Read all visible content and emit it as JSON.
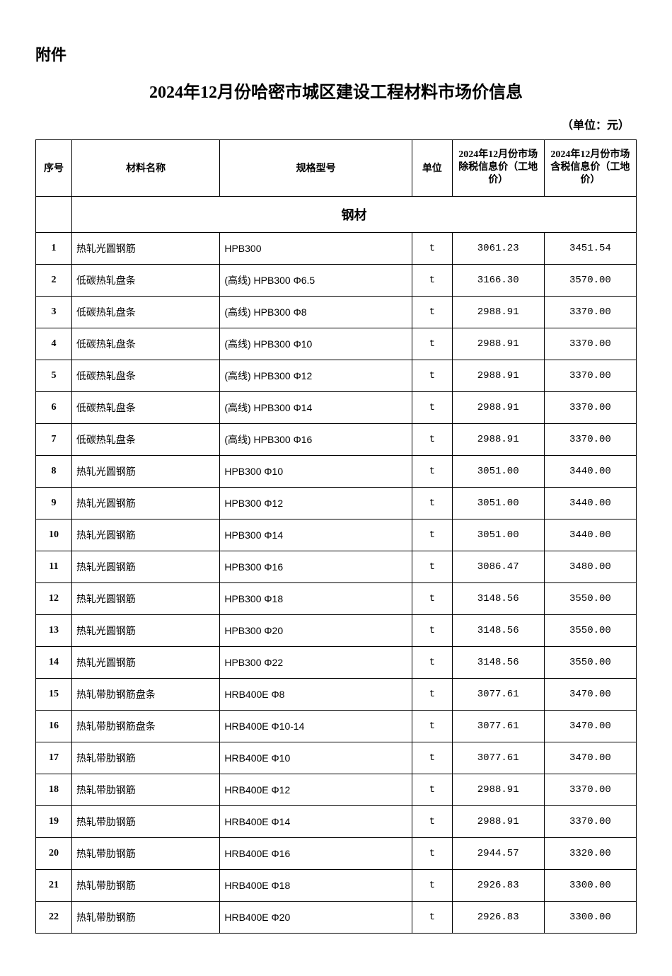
{
  "attachment_label": "附件",
  "title": "2024年12月份哈密市城区建设工程材料市场价信息",
  "unit_label": "（单位：元）",
  "headers": {
    "seq": "序号",
    "name": "材料名称",
    "spec": "规格型号",
    "unit": "单位",
    "price_excl": "2024年12月份市场除税信息价（工地价）",
    "price_incl": "2024年12月份市场含税信息价（工地价）"
  },
  "section_header": "钢材",
  "rows": [
    {
      "seq": "1",
      "name": "热轧光圆钢筋",
      "spec": "HPB300",
      "unit": "t",
      "price_excl": "3061.23",
      "price_incl": "3451.54"
    },
    {
      "seq": "2",
      "name": "低碳热轧盘条",
      "spec": "(高线) HPB300 Φ6.5",
      "unit": "t",
      "price_excl": "3166.30",
      "price_incl": "3570.00"
    },
    {
      "seq": "3",
      "name": "低碳热轧盘条",
      "spec": "(高线) HPB300 Φ8",
      "unit": "t",
      "price_excl": "2988.91",
      "price_incl": "3370.00"
    },
    {
      "seq": "4",
      "name": "低碳热轧盘条",
      "spec": "(高线) HPB300 Φ10",
      "unit": "t",
      "price_excl": "2988.91",
      "price_incl": "3370.00"
    },
    {
      "seq": "5",
      "name": "低碳热轧盘条",
      "spec": "(高线) HPB300 Φ12",
      "unit": "t",
      "price_excl": "2988.91",
      "price_incl": "3370.00"
    },
    {
      "seq": "6",
      "name": "低碳热轧盘条",
      "spec": "(高线) HPB300 Φ14",
      "unit": "t",
      "price_excl": "2988.91",
      "price_incl": "3370.00"
    },
    {
      "seq": "7",
      "name": "低碳热轧盘条",
      "spec": "(高线) HPB300 Φ16",
      "unit": "t",
      "price_excl": "2988.91",
      "price_incl": "3370.00"
    },
    {
      "seq": "8",
      "name": "热轧光圆钢筋",
      "spec": "HPB300 Φ10",
      "unit": "t",
      "price_excl": "3051.00",
      "price_incl": "3440.00"
    },
    {
      "seq": "9",
      "name": "热轧光圆钢筋",
      "spec": "HPB300 Φ12",
      "unit": "t",
      "price_excl": "3051.00",
      "price_incl": "3440.00"
    },
    {
      "seq": "10",
      "name": "热轧光圆钢筋",
      "spec": "HPB300 Φ14",
      "unit": "t",
      "price_excl": "3051.00",
      "price_incl": "3440.00"
    },
    {
      "seq": "11",
      "name": "热轧光圆钢筋",
      "spec": "HPB300 Φ16",
      "unit": "t",
      "price_excl": "3086.47",
      "price_incl": "3480.00"
    },
    {
      "seq": "12",
      "name": "热轧光圆钢筋",
      "spec": "HPB300 Φ18",
      "unit": "t",
      "price_excl": "3148.56",
      "price_incl": "3550.00"
    },
    {
      "seq": "13",
      "name": "热轧光圆钢筋",
      "spec": "HPB300 Φ20",
      "unit": "t",
      "price_excl": "3148.56",
      "price_incl": "3550.00"
    },
    {
      "seq": "14",
      "name": "热轧光圆钢筋",
      "spec": "HPB300 Φ22",
      "unit": "t",
      "price_excl": "3148.56",
      "price_incl": "3550.00"
    },
    {
      "seq": "15",
      "name": "热轧带肋钢筋盘条",
      "spec": "HRB400E Φ8",
      "unit": "t",
      "price_excl": "3077.61",
      "price_incl": "3470.00"
    },
    {
      "seq": "16",
      "name": "热轧带肋钢筋盘条",
      "spec": "HRB400E Φ10-14",
      "unit": "t",
      "price_excl": "3077.61",
      "price_incl": "3470.00"
    },
    {
      "seq": "17",
      "name": "热轧带肋钢筋",
      "spec": "HRB400E Φ10",
      "unit": "t",
      "price_excl": "3077.61",
      "price_incl": "3470.00"
    },
    {
      "seq": "18",
      "name": "热轧带肋钢筋",
      "spec": "HRB400E Φ12",
      "unit": "t",
      "price_excl": "2988.91",
      "price_incl": "3370.00"
    },
    {
      "seq": "19",
      "name": "热轧带肋钢筋",
      "spec": "HRB400E Φ14",
      "unit": "t",
      "price_excl": "2988.91",
      "price_incl": "3370.00"
    },
    {
      "seq": "20",
      "name": "热轧带肋钢筋",
      "spec": "HRB400E Φ16",
      "unit": "t",
      "price_excl": "2944.57",
      "price_incl": "3320.00"
    },
    {
      "seq": "21",
      "name": "热轧带肋钢筋",
      "spec": "HRB400E Φ18",
      "unit": "t",
      "price_excl": "2926.83",
      "price_incl": "3300.00"
    },
    {
      "seq": "22",
      "name": "热轧带肋钢筋",
      "spec": "HRB400E Φ20",
      "unit": "t",
      "price_excl": "2926.83",
      "price_incl": "3300.00"
    }
  ],
  "styling": {
    "page_bg": "#ffffff",
    "text_color": "#000000",
    "border_color": "#000000",
    "title_fontsize": 24,
    "label_fontsize": 22,
    "unit_fontsize": 16,
    "cell_fontsize": 14,
    "section_fontsize": 18,
    "col_widths": {
      "seq": 45,
      "name": 185,
      "spec": 240,
      "unit": 50,
      "price": 115
    }
  }
}
